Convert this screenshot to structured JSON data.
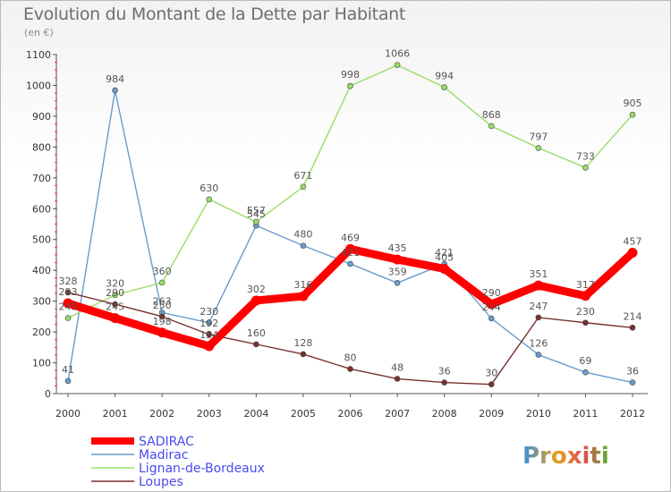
{
  "title": "Evolution du Montant de la Dette par Habitant",
  "subtitle": "(en €)",
  "logo_text": "Proxiti",
  "chart_data": {
    "type": "line",
    "x": [
      "2000",
      "2001",
      "2002",
      "2003",
      "2004",
      "2005",
      "2006",
      "2007",
      "2008",
      "2009",
      "2010",
      "2011",
      "2012"
    ],
    "ylim": [
      0,
      1100
    ],
    "yticks": [
      0,
      100,
      200,
      300,
      400,
      500,
      600,
      700,
      800,
      900,
      1000,
      1100
    ],
    "grid": false,
    "legend_position": "bottom-left",
    "series": [
      {
        "name": "SADIRAC",
        "color": "#ff0000",
        "values": [
          293,
          245,
          198,
          154,
          302,
          316,
          469,
          435,
          405,
          290,
          351,
          317,
          457
        ]
      },
      {
        "name": "Madirac",
        "color": "#6a9ccc",
        "values": [
          41,
          984,
          263,
          230,
          545,
          480,
          421,
          359,
          421,
          244,
          126,
          69,
          36
        ]
      },
      {
        "name": "Lignan-de-Bordeaux",
        "color": "#99dd66",
        "values": [
          245,
          320,
          360,
          630,
          557,
          671,
          998,
          1066,
          994,
          868,
          797,
          733,
          905
        ]
      },
      {
        "name": "Loupes",
        "color": "#7a2f2f",
        "values": [
          328,
          290,
          250,
          192,
          160,
          128,
          80,
          48,
          36,
          30,
          247,
          230,
          214
        ]
      }
    ]
  }
}
